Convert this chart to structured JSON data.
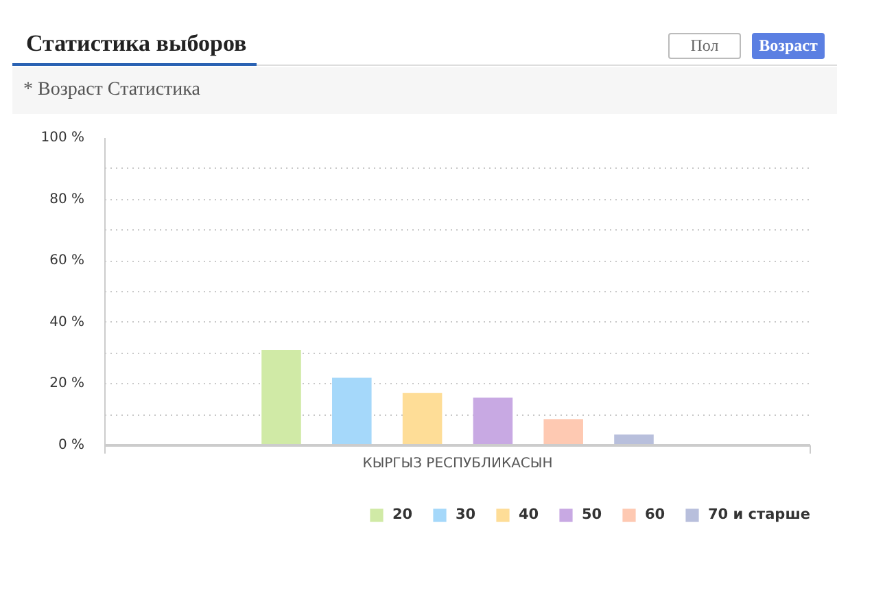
{
  "chart_data": {
    "type": "bar",
    "title": "Статистика выборов",
    "subtitle": "* Возраст Статистика",
    "annotations": [
      "Пол",
      "Возраст"
    ],
    "categories": [
      "КЫРГЫЗ РЕСПУБЛИКАСЫН"
    ],
    "series": [
      {
        "name": "20",
        "color": "#d0eaa6",
        "values": [
          31
        ]
      },
      {
        "name": "30",
        "color": "#a5d8fa",
        "values": [
          22
        ]
      },
      {
        "name": "40",
        "color": "#fedd97",
        "values": [
          17
        ]
      },
      {
        "name": "50",
        "color": "#c8a9e3",
        "values": [
          15.5
        ]
      },
      {
        "name": "60",
        "color": "#fec9b2",
        "values": [
          8.5
        ]
      },
      {
        "name": "70 и старше",
        "color": "#b8bfdc",
        "values": [
          3.5
        ]
      }
    ],
    "ylim": [
      0,
      100
    ],
    "yticks": [
      {
        "value": 0,
        "label": "0 %"
      },
      {
        "value": 10,
        "label": null
      },
      {
        "value": 20,
        "label": "20 %"
      },
      {
        "value": 30,
        "label": null
      },
      {
        "value": 40,
        "label": "40 %"
      },
      {
        "value": 50,
        "label": null
      },
      {
        "value": 60,
        "label": "60 %"
      },
      {
        "value": 70,
        "label": null
      },
      {
        "value": 80,
        "label": "80 %"
      },
      {
        "value": 90,
        "label": null
      },
      {
        "value": 100,
        "label": "100 %"
      }
    ],
    "grid": "y",
    "legend": "bottom right"
  }
}
